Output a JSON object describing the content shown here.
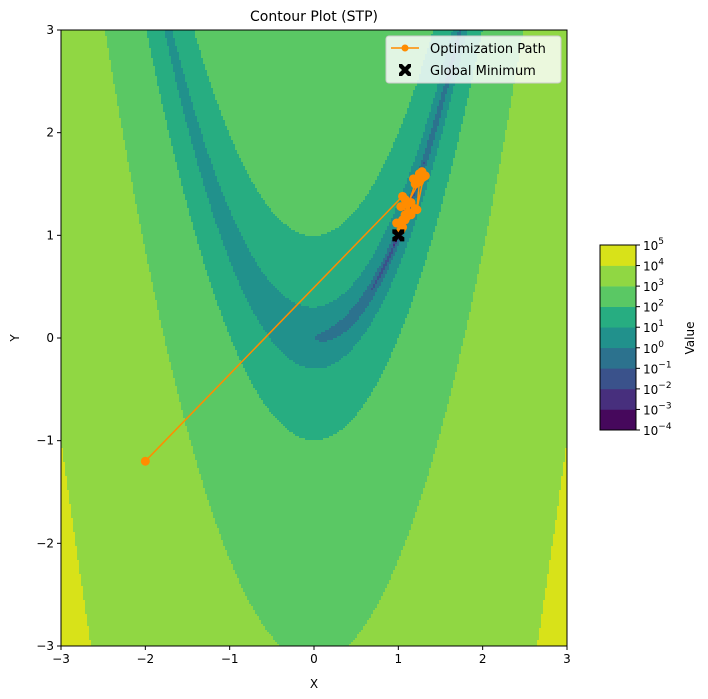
{
  "chart_data": {
    "type": "contour",
    "title": "Contour Plot (STP)",
    "xlabel": "X",
    "ylabel": "Y",
    "xlim": [
      -3,
      3
    ],
    "ylim": [
      -3,
      3
    ],
    "xticks": [
      "−3",
      "−2",
      "−1",
      "0",
      "1",
      "2",
      "3"
    ],
    "yticks": [
      "−3",
      "−2",
      "−1",
      "0",
      "1",
      "2",
      "3"
    ],
    "grid": false,
    "log_color_scale": true,
    "levels": [
      0.0001,
      0.001,
      0.01,
      0.1,
      1,
      10,
      100,
      1000,
      10000,
      100000
    ],
    "level_colors": [
      "#46085c",
      "#472f7d",
      "#3a528b",
      "#2c728e",
      "#21918c",
      "#27ad81",
      "#5ac864",
      "#90d743",
      "#d8e219"
    ],
    "colorbar": {
      "label": "Value",
      "tick_exponents": [
        "−4",
        "−3",
        "−2",
        "−1",
        "0",
        "1",
        "2",
        "3",
        "4",
        "5"
      ]
    },
    "legend": {
      "placement": "top-right",
      "entries": [
        {
          "label": "Optimization Path",
          "color": "#ff8c00",
          "marker": "circle-line"
        },
        {
          "label": "Global Minimum",
          "color": "#000000",
          "marker": "x"
        }
      ]
    },
    "path_color": "#ff8c00",
    "series": [
      {
        "name": "Optimization Path",
        "type": "line",
        "x": [
          -2.0,
          1.05,
          1.08,
          1.03,
          1.12,
          1.2,
          1.08,
          1.15,
          1.1,
          1.05,
          1.2,
          1.18,
          1.25,
          1.28,
          1.32,
          1.25,
          1.22,
          1.3,
          1.27,
          1.1,
          1.15,
          1.08,
          1.02,
          1.05,
          0.98,
          1.03
        ],
        "y": [
          -1.2,
          1.38,
          1.35,
          1.28,
          1.22,
          1.26,
          1.2,
          1.32,
          1.18,
          1.15,
          1.5,
          1.55,
          1.6,
          1.62,
          1.58,
          1.52,
          1.25,
          1.57,
          1.55,
          1.3,
          1.2,
          1.15,
          1.12,
          1.08,
          1.12,
          1.05
        ]
      },
      {
        "name": "Global Minimum",
        "type": "scatter",
        "x": [
          1.0
        ],
        "y": [
          1.0
        ]
      }
    ]
  }
}
